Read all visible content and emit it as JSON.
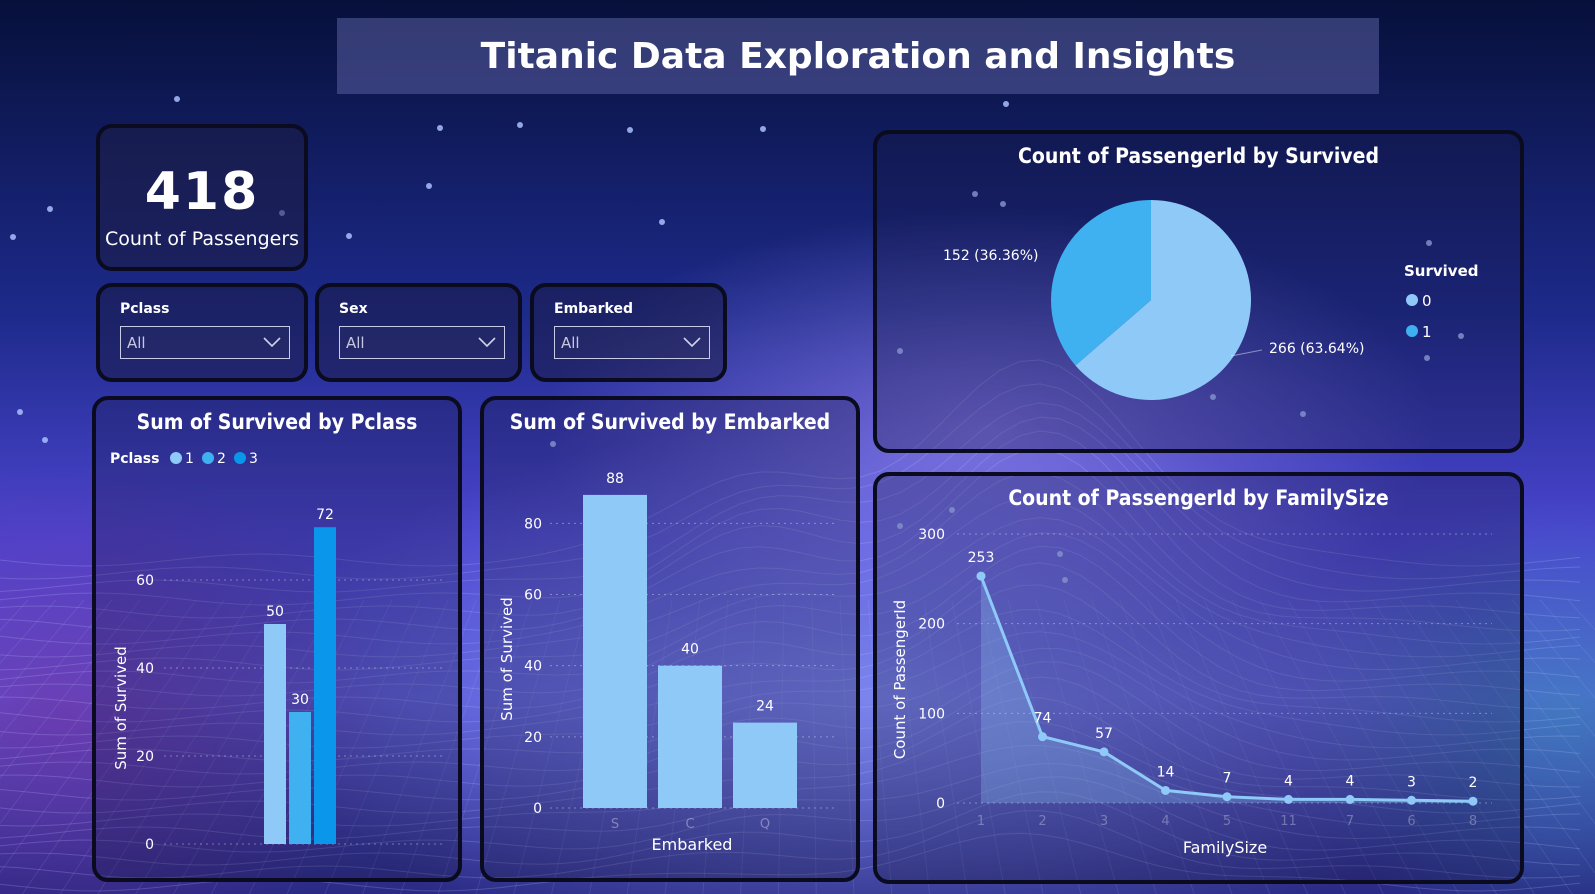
{
  "header": {
    "title": "Titanic Data Exploration and Insights"
  },
  "kpi": {
    "value": "418",
    "label": "Count of Passengers"
  },
  "slicers": [
    {
      "title": "Pclass",
      "value": "All"
    },
    {
      "title": "Sex",
      "value": "All"
    },
    {
      "title": "Embarked",
      "value": "All"
    }
  ],
  "chart_data": [
    {
      "type": "bar",
      "title": "Sum of Survived by Pclass",
      "legend_title": "Pclass",
      "legend": [
        "1",
        "2",
        "3"
      ],
      "categories": [
        "1",
        "2",
        "3"
      ],
      "values": [
        50,
        30,
        72
      ],
      "colors": [
        "#8ec9f7",
        "#3fb0f0",
        "#0a96ea"
      ],
      "ylabel": "Sum of Survived",
      "ylim": [
        0,
        80
      ],
      "yticks": [
        0,
        20,
        40,
        60
      ],
      "grid": true
    },
    {
      "type": "bar",
      "title": "Sum of Survived by Embarked",
      "categories": [
        "S",
        "C",
        "Q"
      ],
      "values": [
        88,
        40,
        24
      ],
      "color": "#8ec9f7",
      "xlabel": "Embarked",
      "ylabel": "Sum of Survived",
      "ylim": [
        0,
        95
      ],
      "yticks": [
        0,
        20,
        40,
        60,
        80
      ],
      "grid": true
    },
    {
      "type": "pie",
      "title": "Count of PassengerId by Survived",
      "legend_title": "Survived",
      "slices": [
        {
          "label": "0",
          "value": 266,
          "text": "266 (63.64%)",
          "color": "#8ec9f7"
        },
        {
          "label": "1",
          "value": 152,
          "text": "152 (36.36%)",
          "color": "#3fb0f0"
        }
      ],
      "legend_position": "right"
    },
    {
      "type": "area",
      "title": "Count of PassengerId by FamilySize",
      "categories": [
        "1",
        "2",
        "3",
        "4",
        "5",
        "11",
        "7",
        "6",
        "8"
      ],
      "values": [
        253,
        74,
        57,
        14,
        7,
        4,
        4,
        3,
        2
      ],
      "color": "#8ec9f7",
      "xlabel": "FamilySize",
      "ylabel": "Count of PassengerId",
      "ylim": [
        0,
        320
      ],
      "yticks": [
        0,
        100,
        200,
        300
      ],
      "grid": true
    }
  ]
}
